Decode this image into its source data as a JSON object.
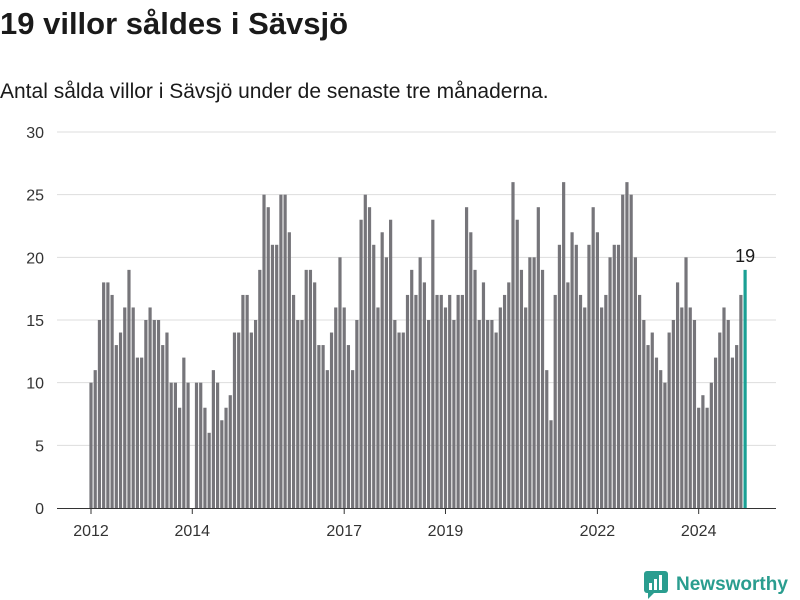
{
  "title": "19 villor såldes i Sävsjö",
  "subtitle": "Antal sålda villor i Sävsjö under de senaste tre månaderna.",
  "brand": {
    "name": "Newsworthy",
    "icon": "newsworthy-logo-icon",
    "color": "#2a9d8f"
  },
  "colors": {
    "bar": "#76757a",
    "highlight": "#1aa094",
    "grid": "#dddddd",
    "axis": "#333333",
    "text": "#333333"
  },
  "chart_data": {
    "type": "bar",
    "title": "",
    "xlabel": "",
    "ylabel": "",
    "ylim": [
      0,
      30
    ],
    "yticks": [
      0,
      5,
      10,
      15,
      20,
      25,
      30
    ],
    "xticks": [
      {
        "label": "2012",
        "month": "2012-01"
      },
      {
        "label": "2014",
        "month": "2014-01"
      },
      {
        "label": "2017",
        "month": "2017-01"
      },
      {
        "label": "2019",
        "month": "2019-01"
      },
      {
        "label": "2022",
        "month": "2022-01"
      },
      {
        "label": "2024",
        "month": "2024-01"
      }
    ],
    "grid": true,
    "first_month": "2012-01",
    "highlight_label": "19",
    "values": [
      10,
      11,
      15,
      18,
      18,
      17,
      13,
      14,
      16,
      19,
      16,
      12,
      12,
      15,
      16,
      15,
      15,
      13,
      14,
      10,
      10,
      8,
      12,
      10,
      0,
      10,
      10,
      8,
      6,
      11,
      10,
      7,
      8,
      9,
      14,
      14,
      17,
      17,
      14,
      15,
      19,
      25,
      24,
      21,
      21,
      25,
      25,
      22,
      17,
      15,
      15,
      19,
      19,
      18,
      13,
      13,
      11,
      14,
      16,
      20,
      16,
      13,
      11,
      15,
      23,
      25,
      24,
      21,
      16,
      22,
      20,
      23,
      15,
      14,
      14,
      17,
      19,
      17,
      20,
      18,
      15,
      23,
      17,
      17,
      16,
      17,
      15,
      17,
      17,
      24,
      22,
      19,
      15,
      18,
      15,
      15,
      14,
      16,
      17,
      18,
      26,
      23,
      19,
      16,
      20,
      20,
      24,
      19,
      11,
      7,
      17,
      21,
      26,
      18,
      22,
      21,
      17,
      16,
      21,
      24,
      22,
      16,
      17,
      20,
      21,
      21,
      25,
      26,
      25,
      20,
      17,
      15,
      13,
      14,
      12,
      11,
      10,
      14,
      15,
      18,
      16,
      20,
      16,
      15,
      8,
      9,
      8,
      10,
      12,
      14,
      16,
      15,
      12,
      13,
      17,
      19
    ]
  }
}
